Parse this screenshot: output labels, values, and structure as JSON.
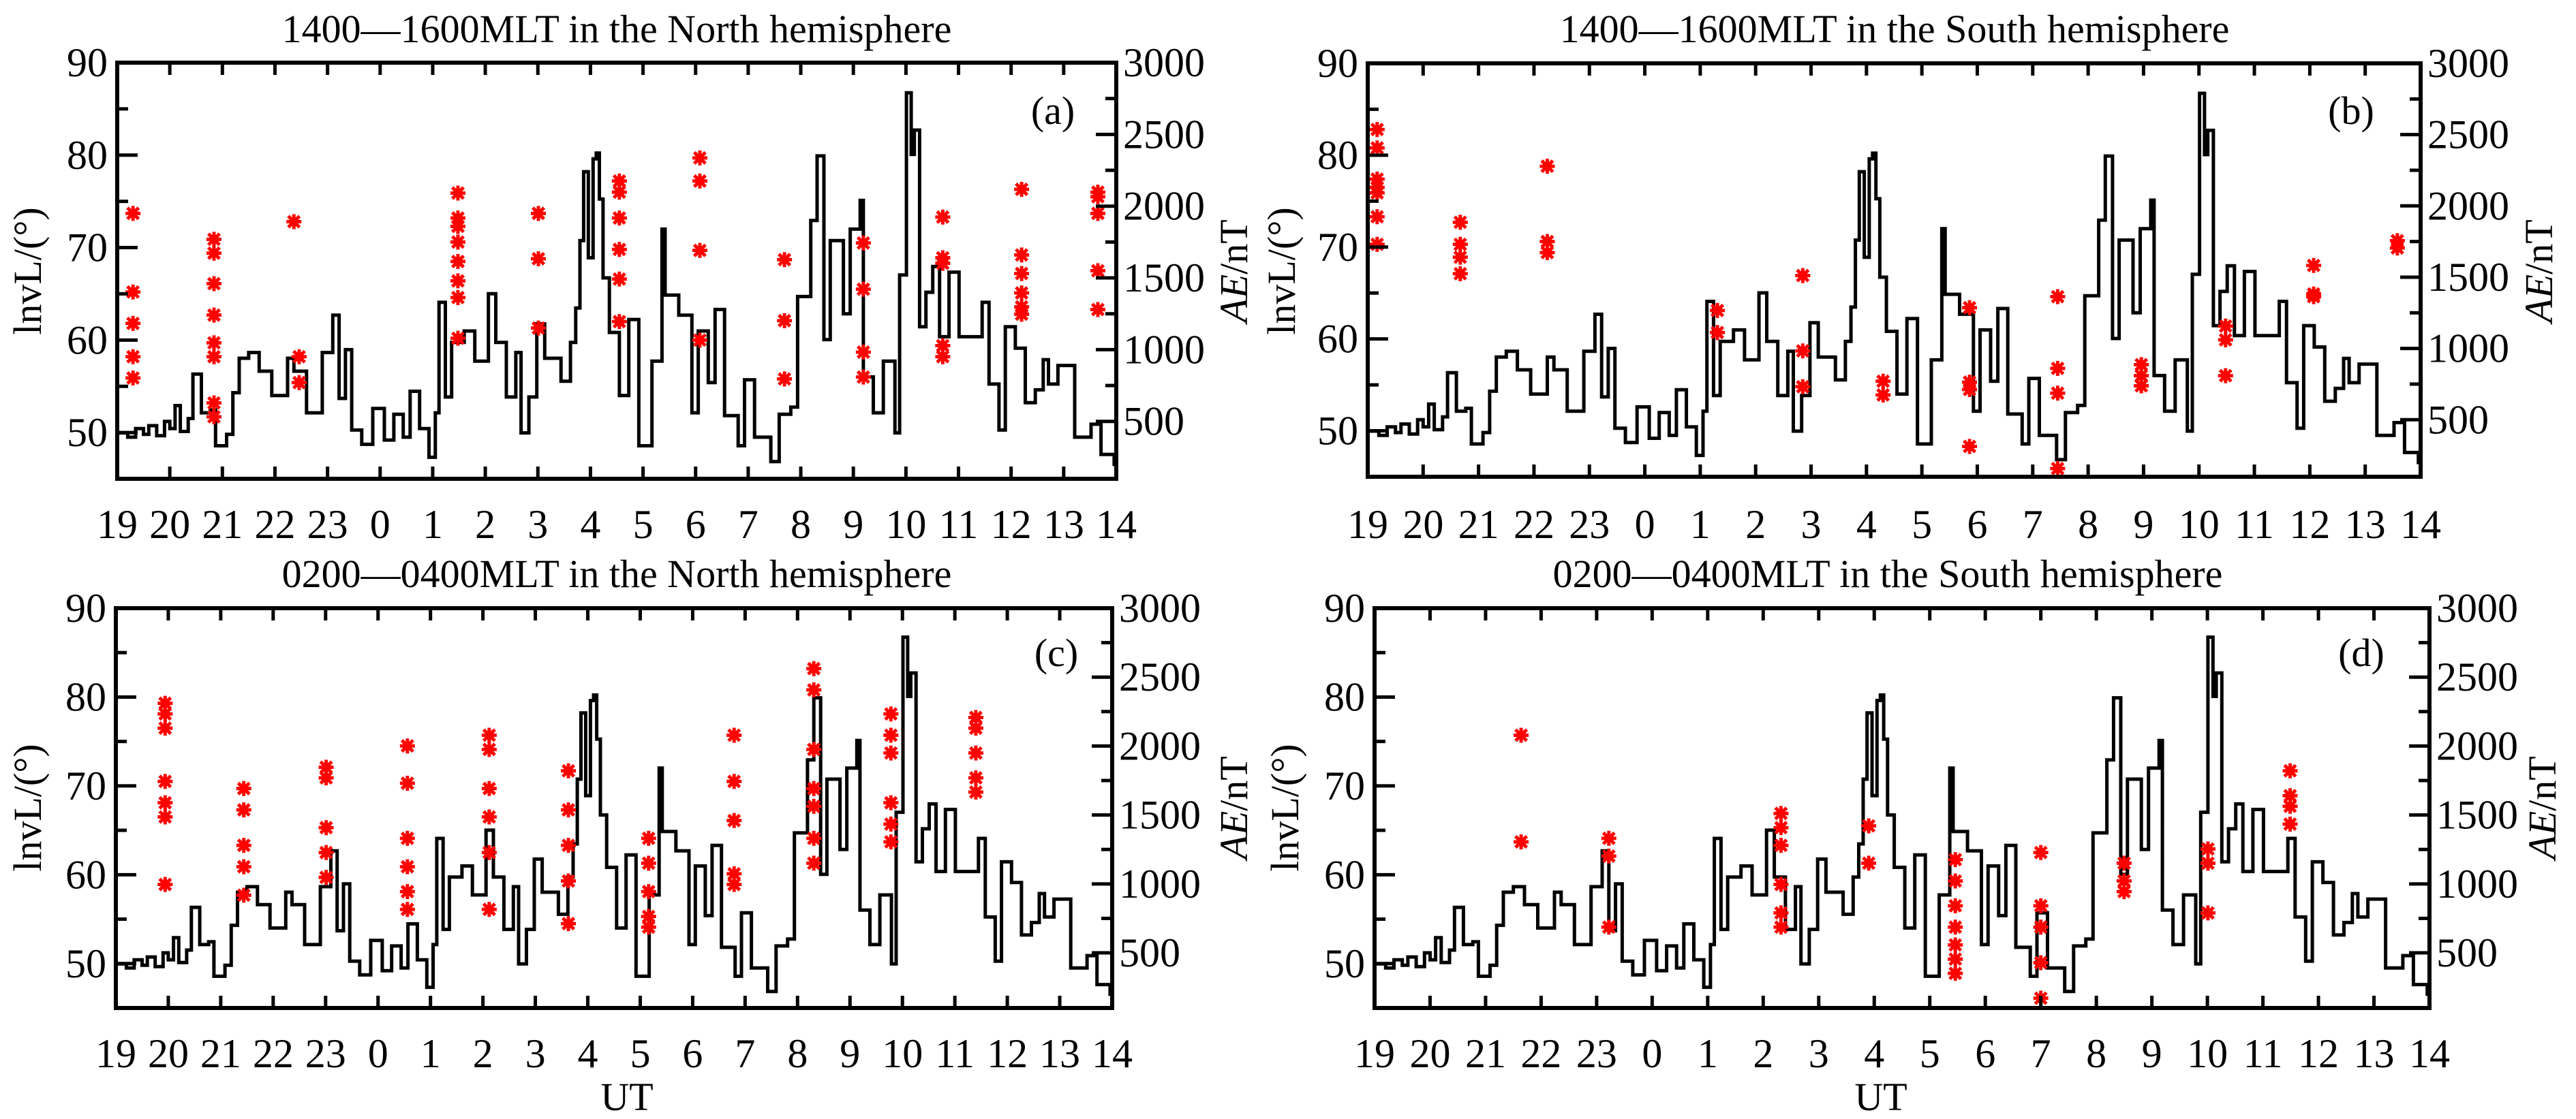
{
  "figure": {
    "x_tick_labels": [
      "19",
      "20",
      "21",
      "22",
      "23",
      "0",
      "1",
      "2",
      "3",
      "4",
      "5",
      "6",
      "7",
      "8",
      "9",
      "10",
      "11",
      "12",
      "13",
      "14"
    ],
    "xlabel": "UT",
    "left_ylabel": "lnvL/(°)",
    "right_ylabel_italic": "AE",
    "right_ylabel_unit": "/nT",
    "left_yticks": [
      50,
      60,
      70,
      80,
      90
    ],
    "right_yticks": [
      500,
      1000,
      1500,
      2000,
      2500,
      3000
    ],
    "colors": {
      "ae_line": "#000000",
      "marker": "#ff0000",
      "axis": "#000000"
    }
  },
  "chart_data": [
    {
      "id": "a",
      "type": "line+scatter",
      "title": "1400—1600MLT in the North hemisphere",
      "panel_label": "(a)",
      "xlabel": "",
      "ylabel_left": "lnvL/(°)",
      "ylabel_right": "AE/nT",
      "x_unit": "hours since 19 UT",
      "xlim": [
        0,
        19
      ],
      "ylim_left": [
        45,
        90
      ],
      "ylim_right": [
        100,
        3000
      ],
      "grid": false,
      "markers": [
        [
          0.3,
          73.7
        ],
        [
          0.3,
          65.2
        ],
        [
          0.3,
          61.8
        ],
        [
          0.3,
          58.2
        ],
        [
          0.3,
          55.9
        ],
        [
          1.84,
          70.9
        ],
        [
          1.84,
          69.4
        ],
        [
          1.84,
          66.1
        ],
        [
          1.84,
          62.7
        ],
        [
          1.84,
          59.7
        ],
        [
          1.84,
          58.2
        ],
        [
          1.84,
          53.2
        ],
        [
          1.84,
          51.7
        ],
        [
          3.36,
          72.8
        ],
        [
          3.46,
          58.2
        ],
        [
          3.46,
          55.4
        ],
        [
          6.48,
          75.9
        ],
        [
          6.48,
          73.2
        ],
        [
          6.48,
          72.3
        ],
        [
          6.48,
          70.6
        ],
        [
          6.48,
          68.5
        ],
        [
          6.48,
          66.4
        ],
        [
          6.48,
          64.6
        ],
        [
          6.48,
          60.2
        ],
        [
          8.01,
          73.7
        ],
        [
          8.01,
          68.8
        ],
        [
          8.01,
          61.3
        ],
        [
          9.55,
          77.2
        ],
        [
          9.55,
          76.0
        ],
        [
          9.55,
          73.2
        ],
        [
          9.55,
          69.8
        ],
        [
          9.55,
          66.6
        ],
        [
          9.55,
          62.0
        ],
        [
          11.08,
          79.7
        ],
        [
          11.08,
          77.2
        ],
        [
          11.08,
          69.7
        ],
        [
          11.08,
          60.0
        ],
        [
          12.69,
          68.7
        ],
        [
          12.69,
          62.1
        ],
        [
          12.69,
          55.8
        ],
        [
          14.19,
          70.5
        ],
        [
          14.19,
          65.5
        ],
        [
          14.19,
          58.7
        ],
        [
          14.19,
          56.0
        ],
        [
          15.7,
          73.3
        ],
        [
          15.7,
          68.9
        ],
        [
          15.7,
          68.3
        ],
        [
          15.7,
          59.4
        ],
        [
          15.7,
          58.2
        ],
        [
          17.2,
          76.3
        ],
        [
          17.2,
          69.2
        ],
        [
          17.2,
          67.2
        ],
        [
          17.2,
          65.1
        ],
        [
          17.2,
          63.6
        ],
        [
          17.2,
          62.8
        ],
        [
          18.65,
          76.0
        ],
        [
          18.65,
          75.5
        ],
        [
          18.65,
          73.7
        ],
        [
          18.65,
          67.5
        ],
        [
          18.65,
          63.3
        ]
      ]
    },
    {
      "id": "b",
      "type": "line+scatter",
      "title": "1400—1600MLT in the South hemisphere",
      "panel_label": "(b)",
      "xlabel": "",
      "ylabel_left": "lnvL/(°)",
      "ylabel_right": "AE/nT",
      "x_unit": "hours since 19 UT",
      "xlim": [
        0,
        19
      ],
      "ylim_left": [
        45,
        90
      ],
      "ylim_right": [
        100,
        3000
      ],
      "grid": false,
      "markers": [
        [
          0.17,
          82.8
        ],
        [
          0.17,
          80.8
        ],
        [
          0.17,
          77.4
        ],
        [
          0.17,
          76.5
        ],
        [
          0.17,
          75.9
        ],
        [
          0.17,
          73.3
        ],
        [
          0.17,
          70.3
        ],
        [
          1.67,
          72.7
        ],
        [
          1.67,
          70.3
        ],
        [
          1.67,
          68.9
        ],
        [
          1.67,
          67.1
        ],
        [
          3.24,
          78.8
        ],
        [
          3.24,
          70.6
        ],
        [
          3.24,
          69.4
        ],
        [
          6.31,
          63.1
        ],
        [
          6.31,
          60.7
        ],
        [
          7.85,
          66.9
        ],
        [
          7.85,
          58.7
        ],
        [
          7.85,
          54.8
        ],
        [
          9.3,
          55.4
        ],
        [
          9.3,
          53.9
        ],
        [
          10.86,
          63.4
        ],
        [
          10.86,
          55.3
        ],
        [
          10.86,
          54.5
        ],
        [
          10.86,
          48.3
        ],
        [
          12.45,
          64.6
        ],
        [
          12.45,
          56.8
        ],
        [
          12.45,
          54.1
        ],
        [
          12.45,
          45.9
        ],
        [
          13.96,
          57.2
        ],
        [
          13.96,
          56.0
        ],
        [
          13.96,
          54.9
        ],
        [
          15.48,
          61.4
        ],
        [
          15.48,
          59.9
        ],
        [
          15.48,
          56.0
        ],
        [
          17.07,
          68.0
        ],
        [
          17.07,
          64.9
        ],
        [
          17.07,
          64.6
        ],
        [
          18.58,
          70.7
        ],
        [
          18.58,
          69.9
        ]
      ]
    },
    {
      "id": "c",
      "type": "line+scatter",
      "title": "0200—0400MLT in the North hemisphere",
      "panel_label": "(c)",
      "xlabel": "UT",
      "ylabel_left": "lnvL/(°)",
      "ylabel_right": "AE/nT",
      "x_unit": "hours since 19 UT",
      "xlim": [
        0,
        19
      ],
      "ylim_left": [
        45,
        90
      ],
      "ylim_right": [
        100,
        3000
      ],
      "grid": false,
      "markers": [
        [
          0.94,
          79.3
        ],
        [
          0.94,
          78.1
        ],
        [
          0.94,
          76.5
        ],
        [
          0.94,
          70.5
        ],
        [
          0.94,
          68.1
        ],
        [
          0.94,
          66.5
        ],
        [
          0.94,
          58.9
        ],
        [
          2.44,
          69.7
        ],
        [
          2.44,
          67.3
        ],
        [
          2.44,
          63.3
        ],
        [
          2.44,
          60.9
        ],
        [
          2.44,
          57.7
        ],
        [
          4.01,
          72.1
        ],
        [
          4.01,
          70.9
        ],
        [
          4.01,
          65.3
        ],
        [
          4.01,
          62.5
        ],
        [
          4.01,
          59.7
        ],
        [
          5.56,
          74.5
        ],
        [
          5.56,
          70.3
        ],
        [
          5.56,
          64.1
        ],
        [
          5.56,
          60.9
        ],
        [
          5.56,
          58.1
        ],
        [
          5.56,
          56.1
        ],
        [
          7.12,
          75.7
        ],
        [
          7.12,
          74.1
        ],
        [
          7.12,
          69.7
        ],
        [
          7.12,
          66.5
        ],
        [
          7.12,
          62.5
        ],
        [
          7.12,
          56.1
        ],
        [
          8.63,
          71.7
        ],
        [
          8.63,
          67.3
        ],
        [
          8.63,
          63.3
        ],
        [
          8.63,
          59.3
        ],
        [
          8.63,
          54.5
        ],
        [
          10.16,
          64.1
        ],
        [
          10.16,
          61.3
        ],
        [
          10.16,
          58.1
        ],
        [
          10.16,
          55.3
        ],
        [
          10.16,
          54.1
        ],
        [
          11.79,
          75.7
        ],
        [
          11.79,
          70.5
        ],
        [
          11.79,
          66.1
        ],
        [
          11.79,
          60.1
        ],
        [
          11.79,
          58.9
        ],
        [
          13.31,
          83.2
        ],
        [
          13.31,
          80.8
        ],
        [
          13.31,
          74.1
        ],
        [
          13.31,
          69.7
        ],
        [
          13.31,
          67.7
        ],
        [
          13.31,
          64.1
        ],
        [
          13.31,
          61.3
        ],
        [
          14.78,
          78.1
        ],
        [
          14.78,
          75.7
        ],
        [
          14.78,
          73.7
        ],
        [
          14.78,
          68.1
        ],
        [
          14.78,
          65.7
        ],
        [
          14.78,
          63.7
        ],
        [
          16.4,
          77.7
        ],
        [
          16.4,
          76.5
        ],
        [
          16.4,
          73.7
        ],
        [
          16.4,
          70.9
        ],
        [
          16.4,
          69.3
        ]
      ]
    },
    {
      "id": "d",
      "type": "line+scatter",
      "title": "0200—0400MLT in the South hemisphere",
      "panel_label": "(d)",
      "xlabel": "UT",
      "ylabel_left": "lnvL/(°)",
      "ylabel_right": "AE/nT",
      "x_unit": "hours since 19 UT",
      "xlim": [
        0,
        19
      ],
      "ylim_left": [
        45,
        90
      ],
      "ylim_right": [
        100,
        3000
      ],
      "grid": false,
      "markers": [
        [
          2.64,
          75.7
        ],
        [
          2.64,
          63.7
        ],
        [
          4.22,
          64.1
        ],
        [
          4.22,
          62.1
        ],
        [
          4.22,
          54.1
        ],
        [
          7.32,
          66.9
        ],
        [
          7.32,
          65.3
        ],
        [
          7.32,
          63.3
        ],
        [
          7.32,
          58.9
        ],
        [
          7.32,
          55.7
        ],
        [
          7.32,
          54.1
        ],
        [
          8.9,
          65.5
        ],
        [
          8.9,
          61.3
        ],
        [
          10.46,
          61.7
        ],
        [
          10.46,
          59.3
        ],
        [
          10.46,
          56.5
        ],
        [
          10.46,
          54.1
        ],
        [
          10.46,
          52.1
        ],
        [
          10.46,
          50.5
        ],
        [
          10.46,
          48.9
        ],
        [
          12.0,
          62.5
        ],
        [
          12.0,
          56.5
        ],
        [
          12.0,
          54.1
        ],
        [
          12.0,
          50.1
        ],
        [
          12.0,
          46.1
        ],
        [
          13.5,
          61.3
        ],
        [
          13.5,
          59.3
        ],
        [
          13.5,
          58.1
        ],
        [
          15.01,
          62.9
        ],
        [
          15.01,
          61.3
        ],
        [
          15.01,
          55.7
        ],
        [
          16.49,
          71.7
        ],
        [
          16.49,
          68.9
        ],
        [
          16.49,
          67.7
        ],
        [
          16.49,
          65.7
        ]
      ]
    }
  ],
  "ae_series": {
    "name": "AE index (nT)",
    "x_unit": "hours since 19 UT",
    "points": [
      [
        0,
        420
      ],
      [
        0.2,
        390
      ],
      [
        0.35,
        450
      ],
      [
        0.5,
        410
      ],
      [
        0.6,
        470
      ],
      [
        0.75,
        400
      ],
      [
        0.9,
        500
      ],
      [
        1.0,
        450
      ],
      [
        1.1,
        610
      ],
      [
        1.2,
        430
      ],
      [
        1.35,
        520
      ],
      [
        1.44,
        830
      ],
      [
        1.6,
        560
      ],
      [
        1.77,
        580
      ],
      [
        1.87,
        330
      ],
      [
        2.08,
        410
      ],
      [
        2.2,
        700
      ],
      [
        2.32,
        940
      ],
      [
        2.5,
        980
      ],
      [
        2.7,
        850
      ],
      [
        2.94,
        680
      ],
      [
        3.24,
        940
      ],
      [
        3.36,
        850
      ],
      [
        3.6,
        560
      ],
      [
        3.9,
        980
      ],
      [
        4.1,
        1240
      ],
      [
        4.22,
        660
      ],
      [
        4.34,
        1000
      ],
      [
        4.46,
        440
      ],
      [
        4.65,
        340
      ],
      [
        4.86,
        590
      ],
      [
        5.08,
        370
      ],
      [
        5.26,
        550
      ],
      [
        5.44,
        390
      ],
      [
        5.57,
        710
      ],
      [
        5.75,
        450
      ],
      [
        5.93,
        250
      ],
      [
        6.05,
        560
      ],
      [
        6.12,
        1330
      ],
      [
        6.24,
        670
      ],
      [
        6.36,
        1050
      ],
      [
        6.6,
        1130
      ],
      [
        6.8,
        920
      ],
      [
        7.06,
        1390
      ],
      [
        7.2,
        1050
      ],
      [
        7.4,
        670
      ],
      [
        7.58,
        980
      ],
      [
        7.68,
        420
      ],
      [
        7.83,
        670
      ],
      [
        7.98,
        1180
      ],
      [
        8.13,
        940
      ],
      [
        8.44,
        780
      ],
      [
        8.62,
        1050
      ],
      [
        8.72,
        1290
      ],
      [
        8.8,
        1760
      ],
      [
        8.87,
        2240
      ],
      [
        8.96,
        1640
      ],
      [
        9.05,
        2330
      ],
      [
        9.11,
        2370
      ],
      [
        9.17,
        2050
      ],
      [
        9.24,
        1500
      ],
      [
        9.36,
        1120
      ],
      [
        9.55,
        680
      ],
      [
        9.73,
        1210
      ],
      [
        9.92,
        330
      ],
      [
        10.17,
        920
      ],
      [
        10.36,
        1840
      ],
      [
        10.42,
        1380
      ],
      [
        10.68,
        1240
      ],
      [
        10.93,
        560
      ],
      [
        11.05,
        1130
      ],
      [
        11.24,
        770
      ],
      [
        11.37,
        1280
      ],
      [
        11.55,
        540
      ],
      [
        11.81,
        330
      ],
      [
        11.93,
        790
      ],
      [
        12.12,
        390
      ],
      [
        12.43,
        220
      ],
      [
        12.59,
        550
      ],
      [
        12.81,
        600
      ],
      [
        12.94,
        1370
      ],
      [
        13.19,
        1900
      ],
      [
        13.31,
        2350
      ],
      [
        13.44,
        1070
      ],
      [
        13.56,
        1760
      ],
      [
        13.81,
        1250
      ],
      [
        13.94,
        1840
      ],
      [
        14.13,
        2040
      ],
      [
        14.19,
        810
      ],
      [
        14.38,
        560
      ],
      [
        14.57,
        920
      ],
      [
        14.79,
        420
      ],
      [
        14.88,
        1520
      ],
      [
        15.01,
        2790
      ],
      [
        15.1,
        2360
      ],
      [
        15.16,
        2530
      ],
      [
        15.26,
        1160
      ],
      [
        15.38,
        1400
      ],
      [
        15.51,
        1580
      ],
      [
        15.64,
        1090
      ],
      [
        15.82,
        1540
      ],
      [
        16.01,
        1090
      ],
      [
        16.26,
        1090
      ],
      [
        16.45,
        1330
      ],
      [
        16.58,
        760
      ],
      [
        16.77,
        440
      ],
      [
        16.89,
        1160
      ],
      [
        17.08,
        1010
      ],
      [
        17.27,
        630
      ],
      [
        17.46,
        720
      ],
      [
        17.61,
        930
      ],
      [
        17.71,
        760
      ],
      [
        17.89,
        890
      ],
      [
        18.21,
        390
      ],
      [
        18.52,
        480
      ],
      [
        18.71,
        270
      ],
      [
        18.96,
        200
      ],
      [
        19,
        200
      ]
    ]
  }
}
